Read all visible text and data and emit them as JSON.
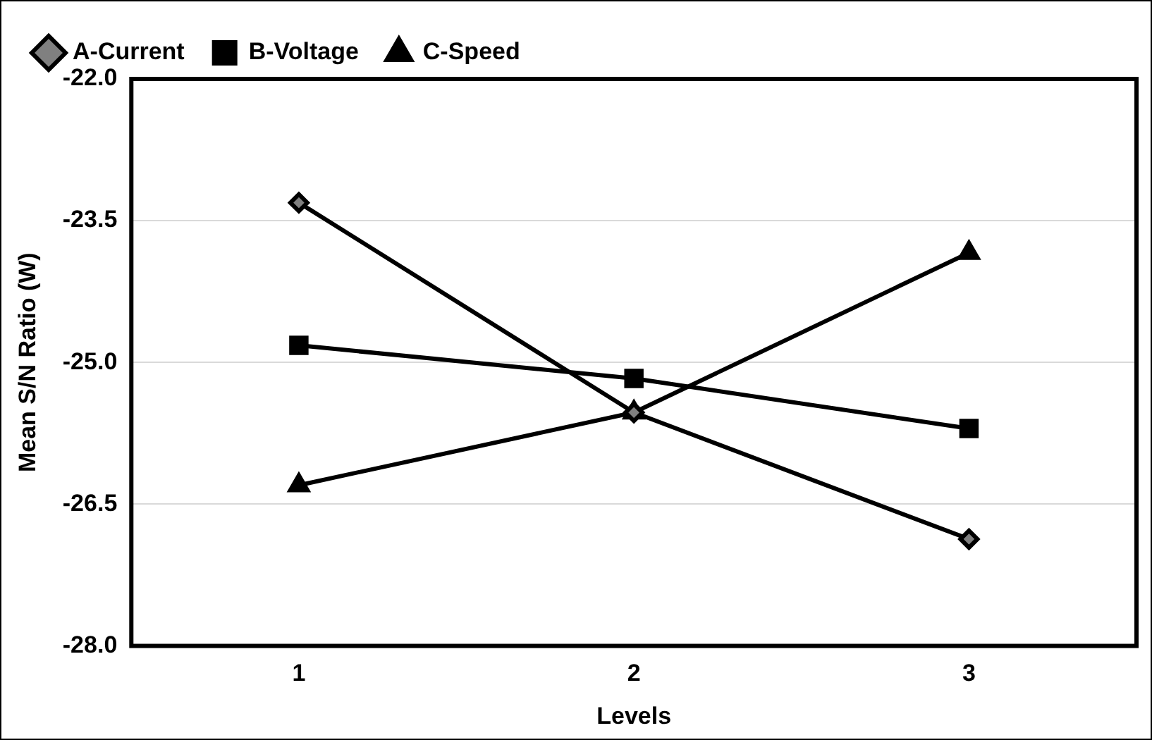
{
  "chart_data": {
    "type": "line",
    "xlabel": "Levels",
    "ylabel": "Mean S/N Ratio (W)",
    "categories": [
      "1",
      "2",
      "3"
    ],
    "series": [
      {
        "name": "A-Current",
        "color": "#000000",
        "marker": "diamond",
        "values": [
          -23.31,
          -25.53,
          -26.87
        ]
      },
      {
        "name": "B-Voltage",
        "color": "#000000",
        "marker": "square",
        "values": [
          -24.82,
          -25.17,
          -25.7
        ]
      },
      {
        "name": "C-Speed",
        "color": "#000000",
        "marker": "triangle",
        "values": [
          -26.3,
          -25.53,
          -23.84
        ]
      }
    ],
    "ylim": [
      -28,
      -22
    ],
    "yticks": [
      {
        "value": -28,
        "label": "-28.0"
      },
      {
        "value": -26.5,
        "label": "-26.5"
      },
      {
        "value": -25,
        "label": "-25.0"
      },
      {
        "value": -23.5,
        "label": "-23.5"
      },
      {
        "value": -22,
        "label": "-22.0"
      }
    ],
    "grid": "y",
    "legend": "top left",
    "line_style": "solid"
  }
}
